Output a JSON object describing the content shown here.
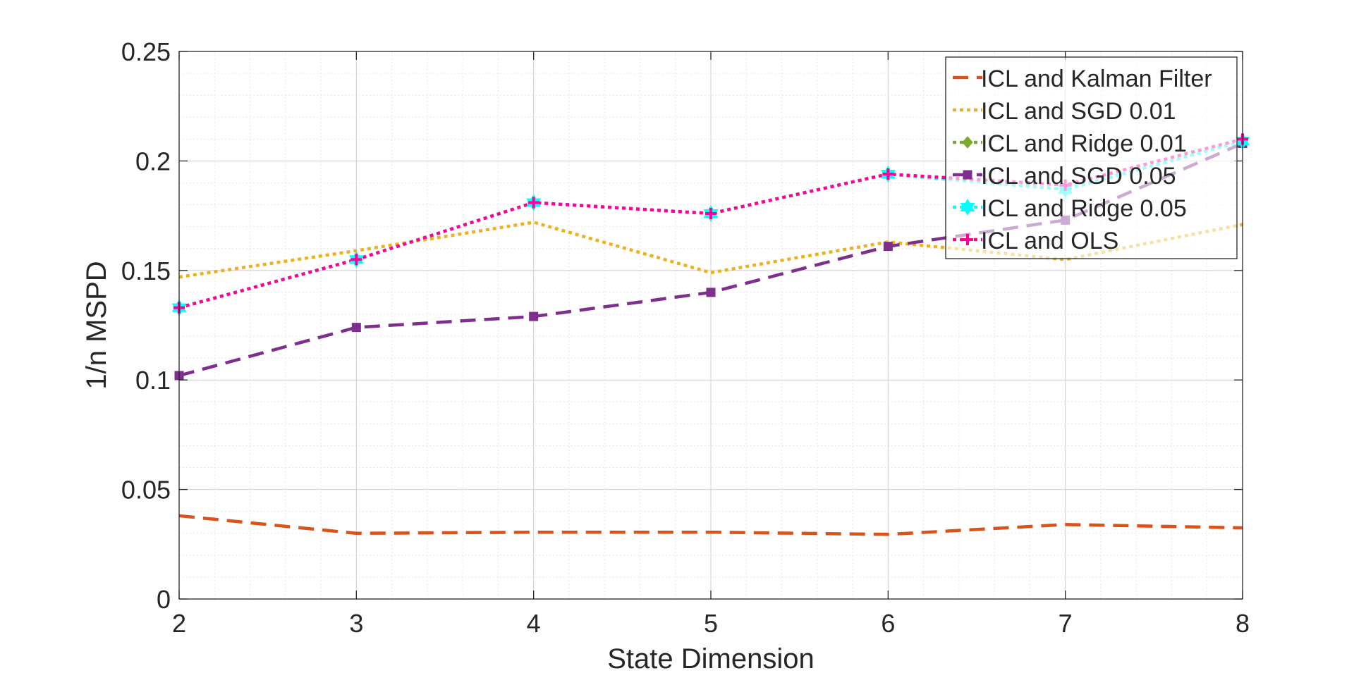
{
  "chart_data": {
    "type": "line",
    "xlabel": "State Dimension",
    "ylabel": "1/n MSPD",
    "x": [
      2,
      3,
      4,
      5,
      6,
      7,
      8
    ],
    "xlim": [
      2,
      8
    ],
    "ylim": [
      0,
      0.25
    ],
    "xticks": [
      "2",
      "3",
      "4",
      "5",
      "6",
      "7",
      "8"
    ],
    "yticks": [
      "0",
      "0.05",
      "0.1",
      "0.15",
      "0.2",
      "0.25"
    ],
    "grid": true,
    "minor_grid": true,
    "legend_position": "top-right",
    "series": [
      {
        "name": "ICL and Kalman Filter",
        "color": "#D95319",
        "dash": "dashed",
        "marker": "none",
        "values": [
          0.038,
          0.03,
          0.0305,
          0.0305,
          0.0295,
          0.034,
          0.0325
        ]
      },
      {
        "name": "ICL and SGD 0.01",
        "color": "#EDB120",
        "dash": "dotted",
        "marker": "none",
        "values": [
          0.147,
          0.159,
          0.172,
          0.149,
          0.163,
          0.155,
          0.171
        ]
      },
      {
        "name": "ICL and Ridge 0.01",
        "color": "#77AC30",
        "dash": "dotted",
        "marker": "diamond",
        "values": [
          0.133,
          0.155,
          0.181,
          0.176,
          0.194,
          0.187,
          0.209
        ]
      },
      {
        "name": "ICL and SGD 0.05",
        "color": "#7E2F8E",
        "dash": "dashed",
        "marker": "square",
        "values": [
          0.102,
          0.124,
          0.129,
          0.14,
          0.161,
          0.173,
          0.208
        ]
      },
      {
        "name": "ICL and Ridge 0.05",
        "color": "#00FFFF",
        "dash": "dotted",
        "marker": "hexagram",
        "values": [
          0.133,
          0.155,
          0.181,
          0.176,
          0.194,
          0.187,
          0.209
        ]
      },
      {
        "name": "ICL and OLS",
        "color": "#FF0099",
        "dash": "dotted",
        "marker": "plus",
        "values": [
          0.133,
          0.155,
          0.181,
          0.176,
          0.194,
          0.189,
          0.21
        ]
      }
    ]
  }
}
